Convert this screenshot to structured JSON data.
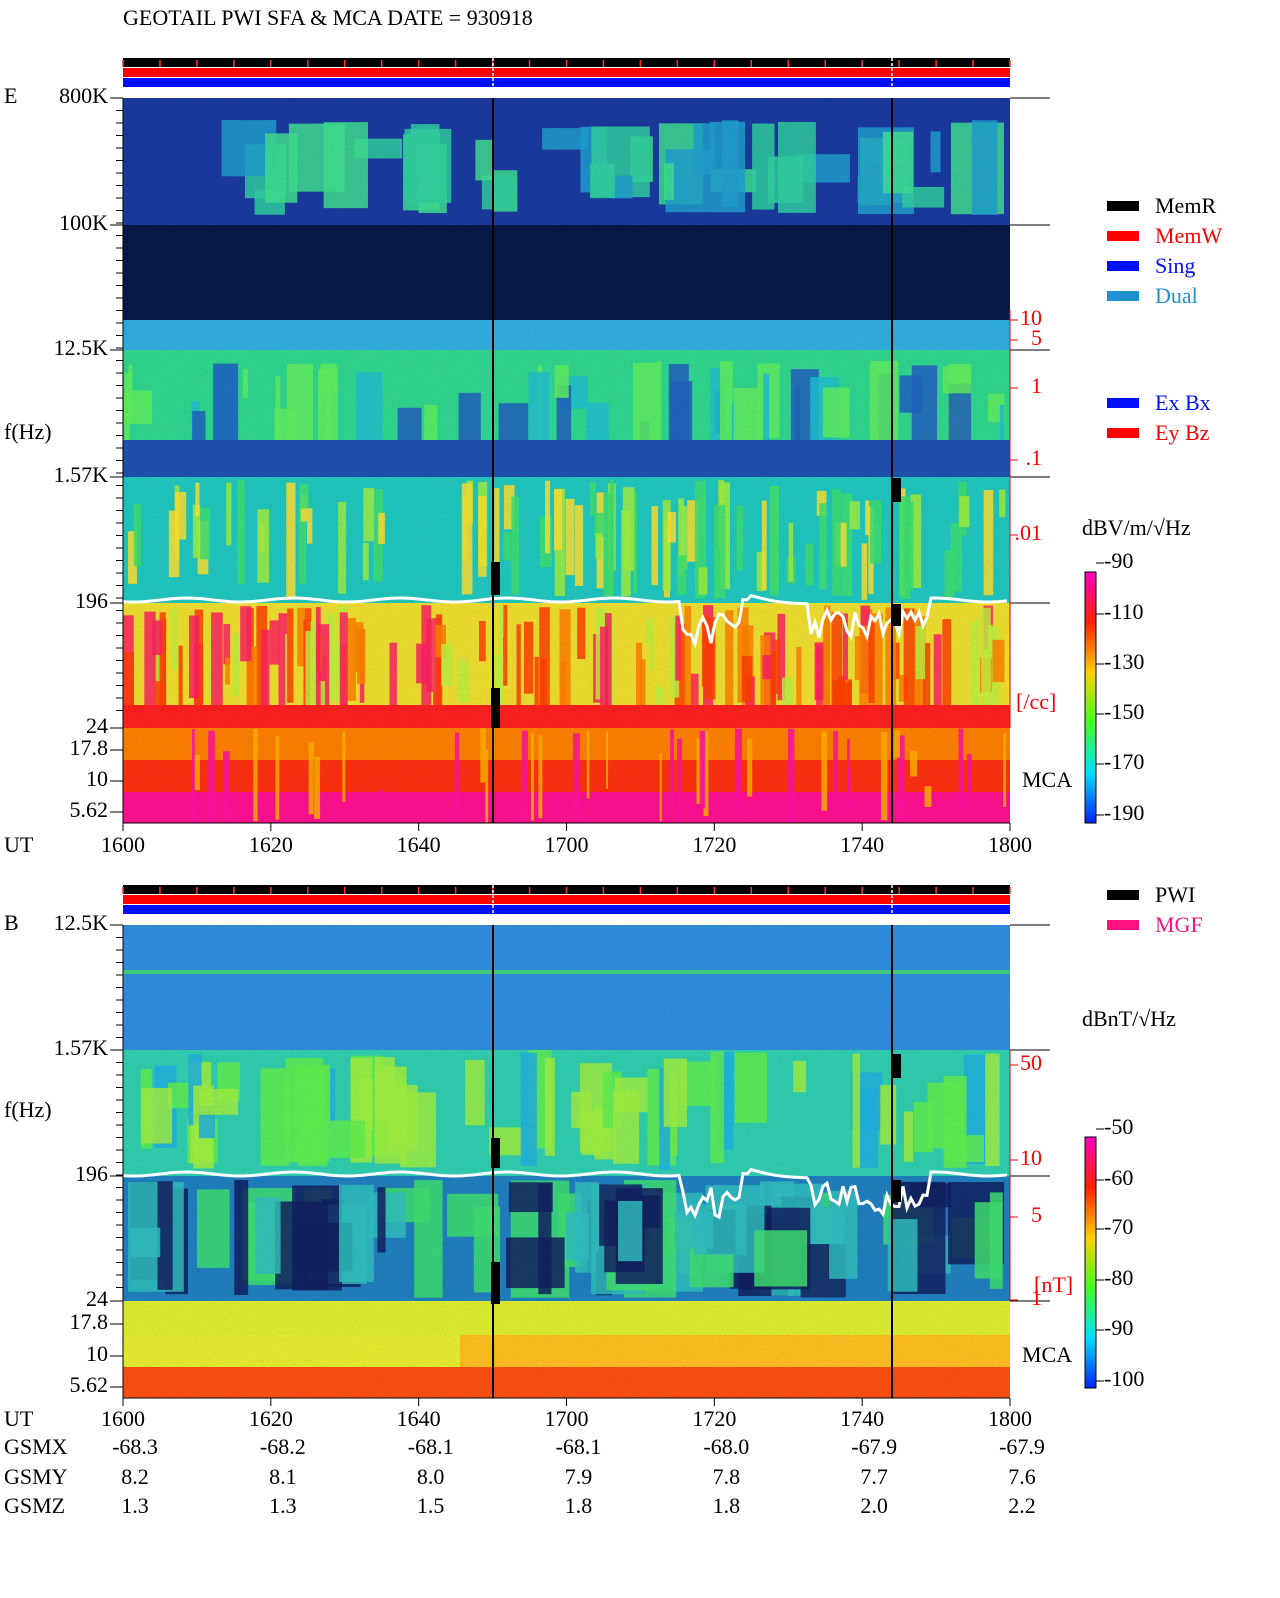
{
  "header": {
    "title": "GEOTAIL  PWI SFA & MCA   DATE = 930918"
  },
  "panel_e": {
    "label": "E",
    "y_label": "f(Hz)",
    "freq_ticks": [
      "800K",
      "100K",
      "12.5K",
      "1.57K",
      "196",
      "24",
      "17.8",
      "10",
      "5.62"
    ],
    "mca_label": "MCA",
    "density_ticks": [
      "10",
      "5",
      "1",
      ".1",
      ".01"
    ],
    "density_unit": "[/cc]",
    "mode_legend": [
      "MemR",
      "MemW",
      "Sing",
      "Dual"
    ],
    "component_legend": [
      "Ex Bx",
      "Ey Bz"
    ],
    "colorbar_unit": "dBV/m/√Hz",
    "colorbar_ticks": [
      "-90",
      "-110",
      "-130",
      "-150",
      "-170",
      "-190"
    ]
  },
  "time_axis_e": {
    "label": "UT",
    "ticks": [
      "1600",
      "1620",
      "1640",
      "1700",
      "1720",
      "1740",
      "1800"
    ]
  },
  "panel_b": {
    "label": "B",
    "y_label": "f(Hz)",
    "freq_ticks": [
      "12.5K",
      "1.57K",
      "196",
      "24",
      "17.8",
      "10",
      "5.62"
    ],
    "mca_label": "MCA",
    "field_ticks": [
      "50",
      "10",
      "5",
      "1"
    ],
    "field_unit": "[nT]",
    "source_legend": [
      "PWI",
      "MGF"
    ],
    "colorbar_unit": "dBnT/√Hz",
    "colorbar_ticks": [
      "-50",
      "-60",
      "-70",
      "-80",
      "-90",
      "-100"
    ]
  },
  "time_axis_b": {
    "label": "UT",
    "ticks": [
      "1600",
      "1620",
      "1640",
      "1700",
      "1720",
      "1740",
      "1800"
    ]
  },
  "orbit": {
    "rows": [
      {
        "label": "GSMX",
        "values": [
          "-68.3",
          "-68.2",
          "-68.1",
          "-68.1",
          "-68.0",
          "-67.9",
          "-67.9"
        ]
      },
      {
        "label": "GSMY",
        "values": [
          "8.2",
          "8.1",
          "8.0",
          "7.9",
          "7.8",
          "7.7",
          "7.6"
        ]
      },
      {
        "label": "GSMZ",
        "values": [
          "1.3",
          "1.3",
          "1.5",
          "1.8",
          "1.8",
          "2.0",
          "2.2"
        ]
      }
    ]
  }
}
